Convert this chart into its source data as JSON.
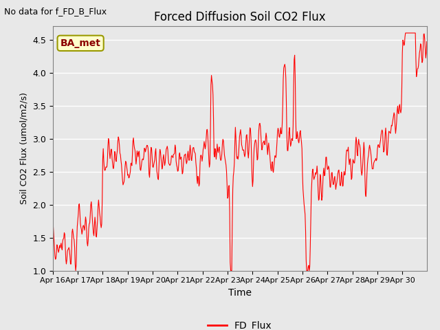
{
  "title": "Forced Diffusion Soil CO2 Flux",
  "xlabel": "Time",
  "ylabel": "Soil CO2 Flux (umol/m2/s)",
  "top_left_text": "No data for f_FD_B_Flux",
  "legend_label": "FD_Flux",
  "line_color": "red",
  "ylim": [
    1.0,
    4.7
  ],
  "yticks": [
    1.0,
    1.5,
    2.0,
    2.5,
    3.0,
    3.5,
    4.0,
    4.5
  ],
  "bg_color": "#e8e8e8",
  "annotation_box_text": "BA_met",
  "annotation_box_facecolor": "#ffffcc",
  "annotation_box_edgecolor": "#999900",
  "figsize": [
    6.4,
    4.8
  ],
  "dpi": 100
}
